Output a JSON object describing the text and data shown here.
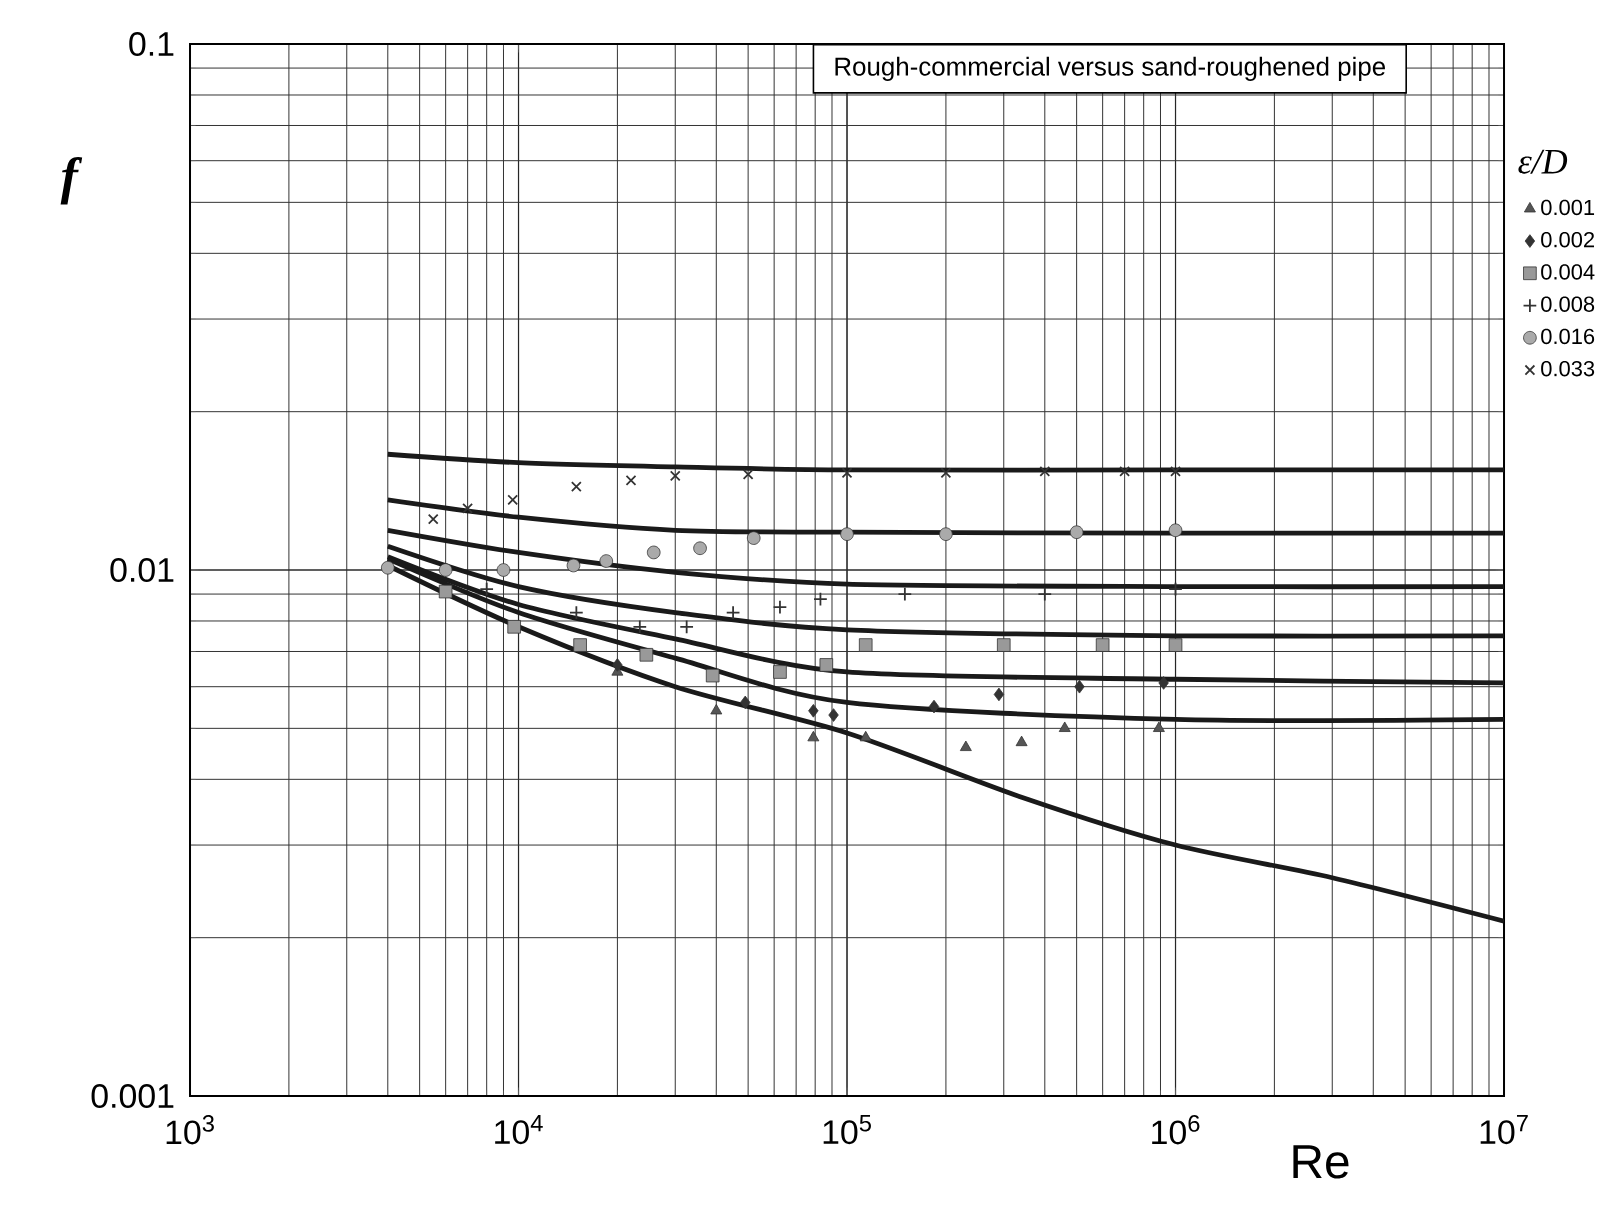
{
  "chart_data": {
    "type": "scatter",
    "title": "Rough-commercial versus sand-roughened pipe",
    "xlabel": "Re",
    "ylabel": "f",
    "legend_title": "ε/D",
    "log": "xy",
    "grid": true,
    "legend": "right",
    "xlim": [
      1000,
      10000000
    ],
    "ylim": [
      0.001,
      0.1
    ],
    "xticks": [
      {
        "value": 1000,
        "label": "10$^{3}$"
      },
      {
        "value": 10000,
        "label": "10$^{4}$"
      },
      {
        "value": 100000,
        "label": "10$^{5}$"
      },
      {
        "value": 1000000,
        "label": "10$^{6}$"
      },
      {
        "value": 10000000,
        "label": "10$^{7}$"
      }
    ],
    "yticks": [
      0.001,
      0.01,
      0.1
    ],
    "series": [
      {
        "type": "line",
        "color": "#1a1a1a",
        "marker": "none",
        "x": [
          4000,
          10000,
          30000,
          100000,
          1000000,
          10000000
        ],
        "values": [
          0.0166,
          0.016,
          0.0157,
          0.0155,
          0.0155,
          0.0155
        ]
      },
      {
        "type": "line",
        "color": "#1a1a1a",
        "marker": "none",
        "x": [
          4000,
          10000,
          30000,
          100000,
          1000000,
          10000000
        ],
        "values": [
          0.0136,
          0.0126,
          0.0119,
          0.0118,
          0.01175,
          0.01175
        ]
      },
      {
        "type": "line",
        "color": "#1a1a1a",
        "marker": "none",
        "x": [
          4000,
          10000,
          30000,
          100000,
          1000000,
          10000000
        ],
        "values": [
          0.0119,
          0.0108,
          0.0099,
          0.0094,
          0.0093,
          0.0093
        ]
      },
      {
        "type": "line",
        "color": "#1a1a1a",
        "marker": "none",
        "x": [
          4000,
          10000,
          30000,
          100000,
          1000000,
          10000000
        ],
        "values": [
          0.0111,
          0.0093,
          0.0083,
          0.0077,
          0.0075,
          0.0075
        ]
      },
      {
        "type": "line",
        "color": "#1a1a1a",
        "marker": "none",
        "x": [
          4000,
          10000,
          30000,
          100000,
          1000000,
          10000000
        ],
        "values": [
          0.0106,
          0.0086,
          0.0074,
          0.0064,
          0.0062,
          0.0061
        ]
      },
      {
        "type": "line",
        "color": "#1a1a1a",
        "marker": "none",
        "x": [
          4000,
          10000,
          30000,
          100000,
          1000000,
          10000000
        ],
        "values": [
          0.0105,
          0.0083,
          0.0068,
          0.0056,
          0.0052,
          0.0052
        ]
      },
      {
        "type": "line",
        "color": "#1a1a1a",
        "marker": "none",
        "x": [
          4000,
          10000,
          30000,
          100000,
          340000,
          1000000,
          3000000,
          10000000
        ],
        "values": [
          0.0102,
          0.0078,
          0.006,
          0.0049,
          0.0037,
          0.003,
          0.0026,
          0.00215
        ]
      },
      {
        "name": "0.001",
        "color": "#555555",
        "marker": "triangle",
        "x": [
          20000,
          40000,
          79000,
          114000,
          230000,
          340000,
          460000,
          890000
        ],
        "values": [
          0.0064,
          0.0054,
          0.0048,
          0.0048,
          0.0046,
          0.0047,
          0.005,
          0.005
        ]
      },
      {
        "name": "0.002",
        "color": "#333333",
        "marker": "diamond",
        "x": [
          20000,
          49000,
          79000,
          91000,
          184000,
          290000,
          510000,
          920000
        ],
        "values": [
          0.0066,
          0.0056,
          0.0054,
          0.0053,
          0.0055,
          0.0058,
          0.006,
          0.0061
        ]
      },
      {
        "name": "0.004",
        "color": "#999999",
        "marker": "square",
        "x": [
          6000,
          9700,
          15400,
          24500,
          39000,
          62500,
          86500,
          114000,
          300000,
          600000,
          1000000
        ],
        "values": [
          0.0091,
          0.0078,
          0.0072,
          0.0069,
          0.0063,
          0.0064,
          0.0066,
          0.0072,
          0.0072,
          0.0072,
          0.0072
        ]
      },
      {
        "name": "0.008",
        "color": "#333333",
        "marker": "plus",
        "x": [
          8000,
          15000,
          23400,
          32500,
          45000,
          62500,
          83000,
          150000,
          400000,
          1000000
        ],
        "values": [
          0.0092,
          0.0083,
          0.0078,
          0.0078,
          0.0083,
          0.0085,
          0.0088,
          0.009,
          0.009,
          0.0092
        ]
      },
      {
        "name": "0.016",
        "color": "#aaaaaa",
        "marker": "circle",
        "x": [
          4000,
          6000,
          9000,
          14700,
          18500,
          25800,
          35700,
          52000,
          100000,
          200000,
          500000,
          1000000
        ],
        "values": [
          0.0101,
          0.01,
          0.01,
          0.0102,
          0.0104,
          0.0108,
          0.011,
          0.0115,
          0.0117,
          0.0117,
          0.0118,
          0.0119
        ]
      },
      {
        "name": "0.033",
        "color": "#333333",
        "marker": "cross",
        "x": [
          5500,
          7000,
          9600,
          15000,
          22000,
          30000,
          50000,
          100000,
          200000,
          400000,
          700000,
          1000000
        ],
        "values": [
          0.0125,
          0.0131,
          0.0136,
          0.0144,
          0.0148,
          0.0151,
          0.0152,
          0.0153,
          0.0153,
          0.0154,
          0.0154,
          0.0154
        ]
      }
    ]
  }
}
